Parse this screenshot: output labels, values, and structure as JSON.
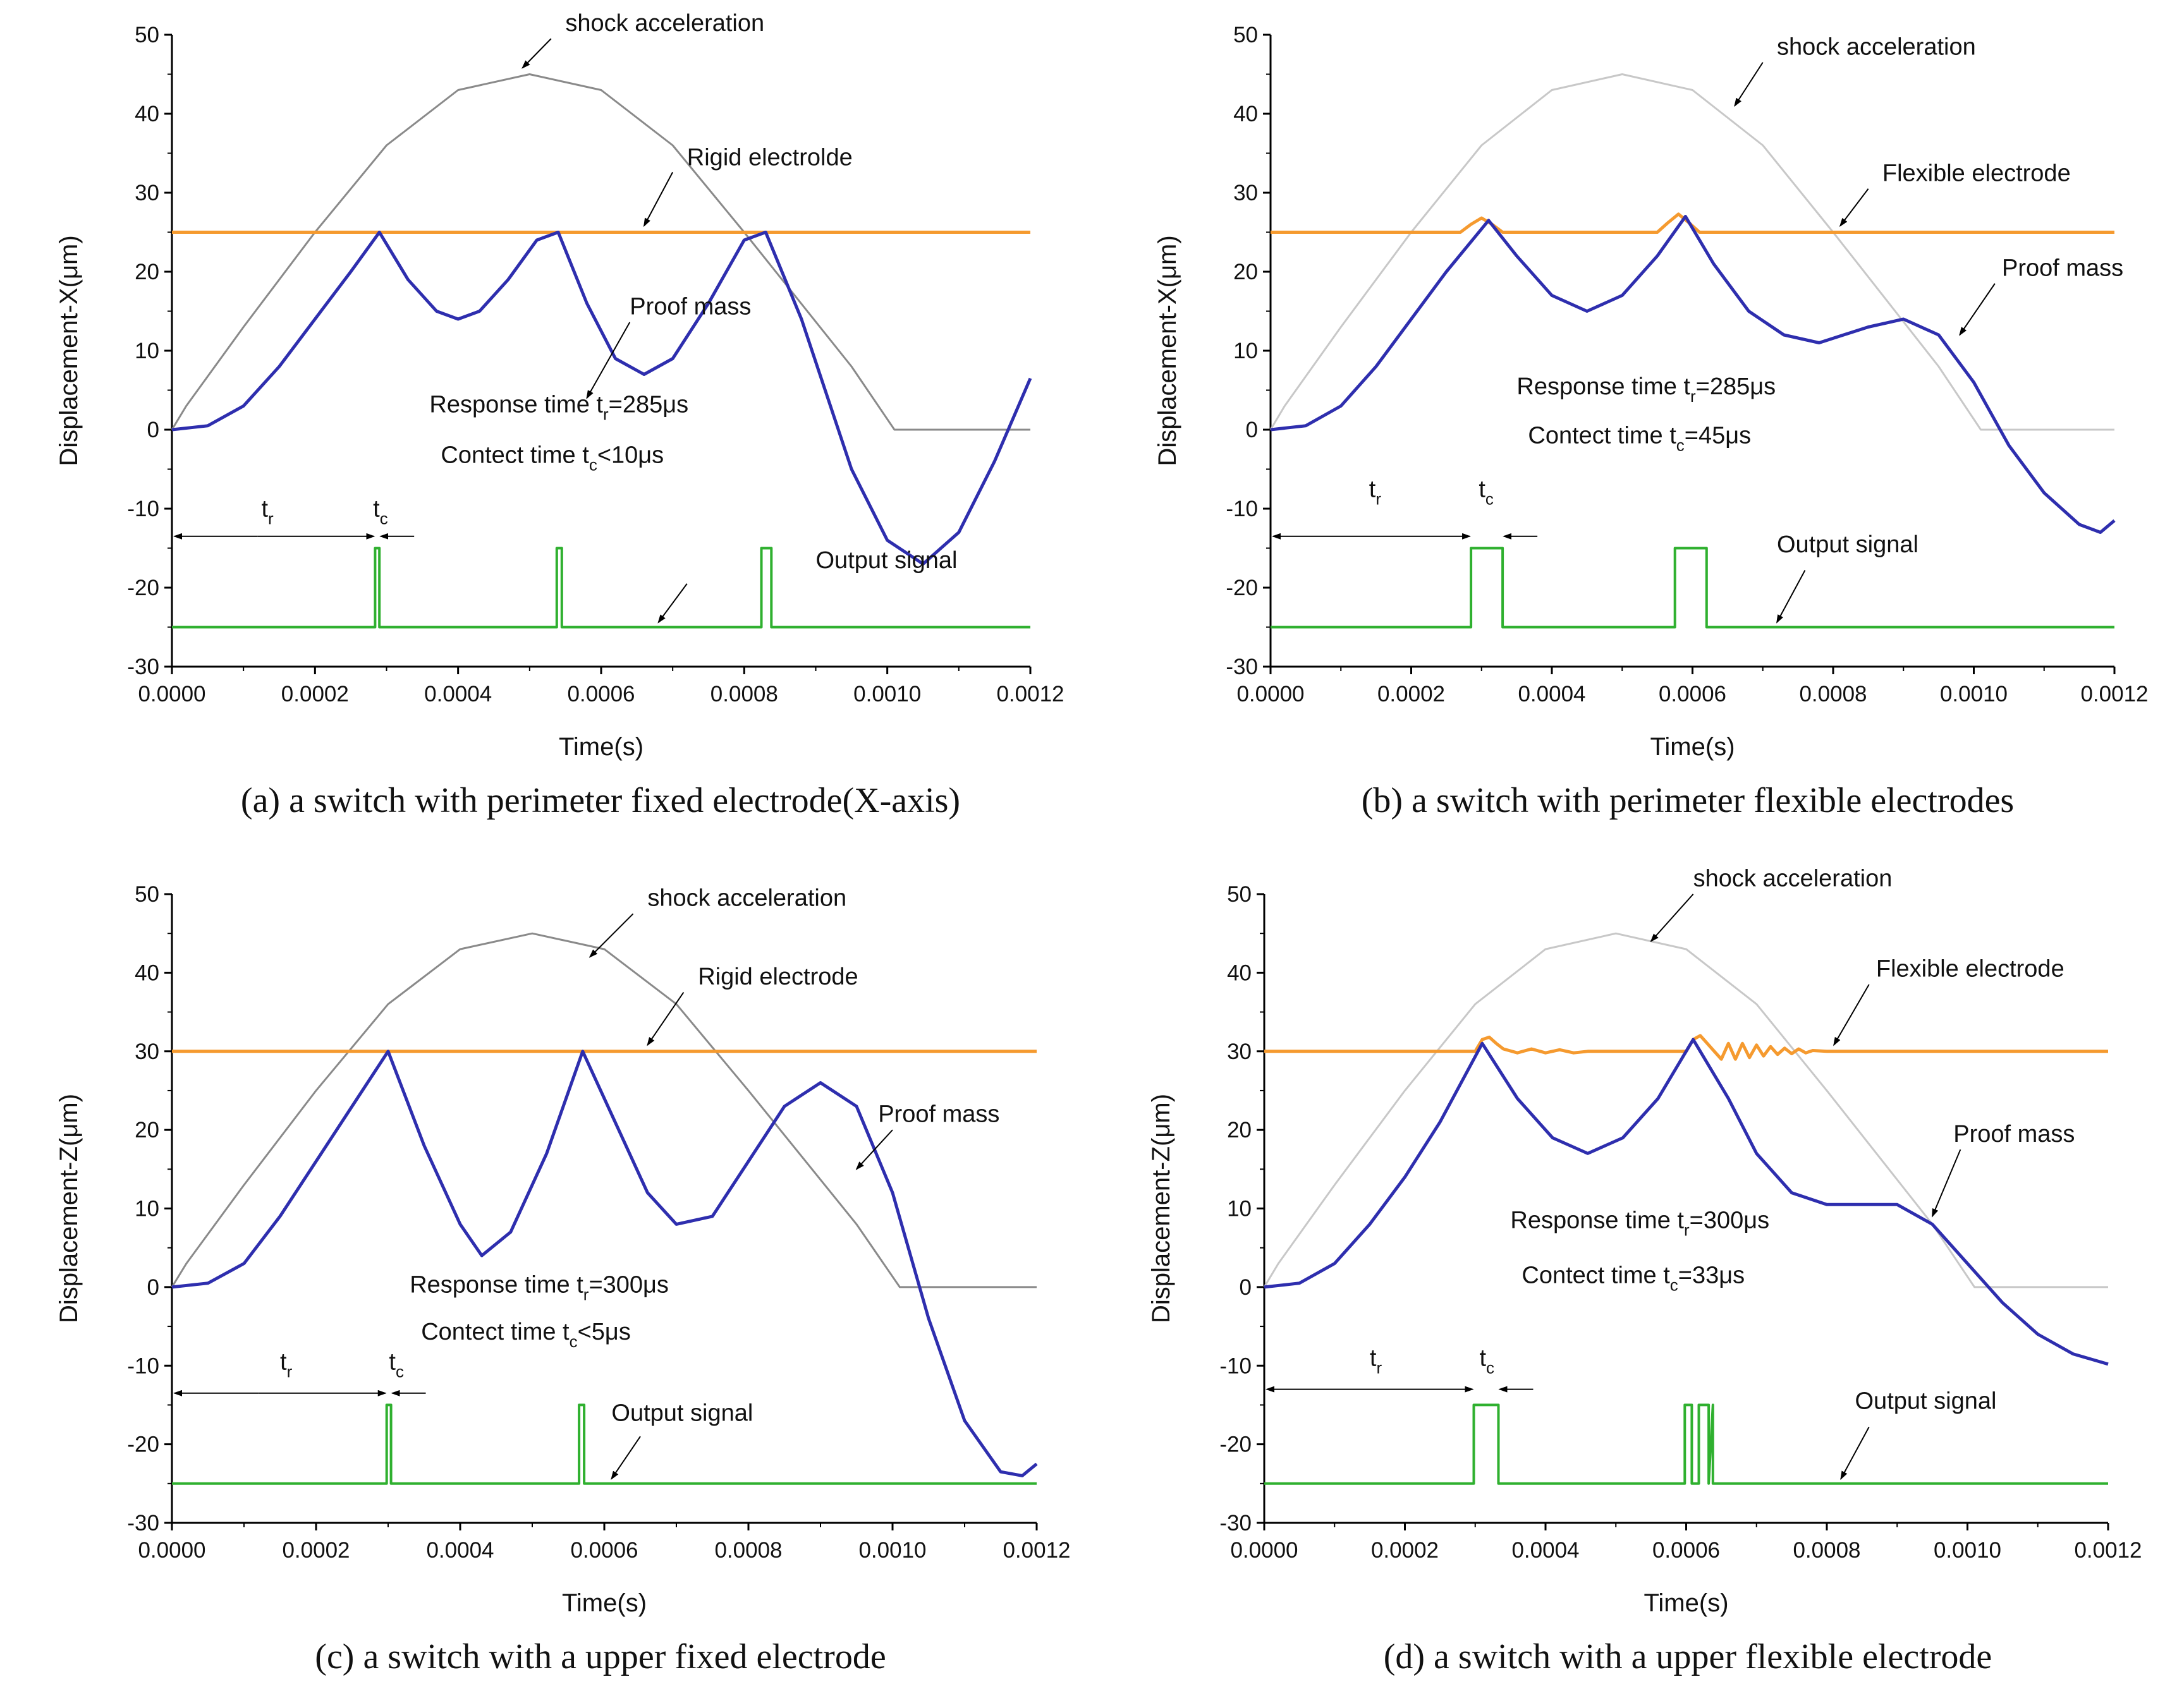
{
  "colors": {
    "proof_mass": "#2e2eae",
    "electrode": "#f59a2f",
    "output": "#2fb02f",
    "shock_dark": "#8a8a8a",
    "shock_light": "#c8c8c8",
    "axis": "#000000"
  },
  "chart_data": [
    {
      "type": "line",
      "panel": "a",
      "caption": "(a) a switch with perimeter fixed electrode(X-axis)",
      "xlabel": "Time(s)",
      "ylabel": "Displacement-X(μm)",
      "xlim": [
        0,
        0.0012
      ],
      "ylim": [
        -30,
        50
      ],
      "x_ticks": [
        "0.0000",
        "0.0002",
        "0.0004",
        "0.0006",
        "0.0008",
        "0.0010",
        "0.0012"
      ],
      "y_ticks": [
        "-30",
        "-20",
        "-10",
        "0",
        "10",
        "20",
        "30",
        "40",
        "50"
      ],
      "shock_style": "dark",
      "series": [
        {
          "name": "shock acceleration",
          "role": "shock",
          "x": [
            0,
            2e-05,
            0.0001,
            0.0002,
            0.0003,
            0.0004,
            0.0005,
            0.0006,
            0.0007,
            0.0008,
            0.00095,
            0.00101,
            0.0012
          ],
          "y": [
            0,
            3,
            13,
            25,
            36,
            43,
            45,
            43,
            36,
            25,
            8,
            0,
            0
          ]
        },
        {
          "name": "Rigid electrolde",
          "role": "electrode",
          "x": [
            0,
            0.0012
          ],
          "y": [
            25,
            25
          ]
        },
        {
          "name": "Proof mass",
          "role": "mass",
          "x": [
            0,
            5e-05,
            0.0001,
            0.00015,
            0.0002,
            0.00025,
            0.00029,
            0.00033,
            0.00037,
            0.0004,
            0.00043,
            0.00047,
            0.00051,
            0.00054,
            0.00058,
            0.00062,
            0.00066,
            0.0007,
            0.00075,
            0.0008,
            0.00083,
            0.00088,
            0.00095,
            0.001,
            0.00105,
            0.0011,
            0.00115,
            0.0012
          ],
          "y": [
            0,
            0.5,
            3,
            8,
            14,
            20,
            25,
            19,
            15,
            14,
            15,
            19,
            24,
            25,
            16,
            9,
            7,
            9,
            16,
            24,
            25,
            14,
            -5,
            -14,
            -17,
            -13,
            -4,
            6.5
          ]
        },
        {
          "name": "Output signal",
          "role": "output",
          "pulse_width_hint": 6e-06,
          "x": [
            0,
            0.000284,
            0.000284,
            0.00029,
            0.00029,
            0.000538,
            0.000538,
            0.000545,
            0.000545,
            0.000824,
            0.000824,
            0.000838,
            0.000838,
            0.0012
          ],
          "y": [
            -25,
            -25,
            -15,
            -15,
            -25,
            -25,
            -15,
            -15,
            -25,
            -25,
            -15,
            -15,
            -25,
            -25
          ]
        }
      ],
      "labels": {
        "shock": "shock acceleration",
        "electrode": "Rigid electrolde",
        "mass": "Proof mass",
        "output": "Output signal"
      },
      "response_prefix": "Response time t",
      "response_sub": "r",
      "response_value": "=285μs",
      "contact_prefix": "Contect time t",
      "contact_sub": "c",
      "contact_value": "<10μs",
      "tr_label": "t",
      "tr_sub": "r",
      "tc_label": "t",
      "tc_sub": "c",
      "tr_arrow_y": -13.5,
      "tr_end": 0.000284,
      "tc_end": 0.00029
    },
    {
      "type": "line",
      "panel": "b",
      "caption": "(b) a switch with perimeter flexible electrodes",
      "xlabel": "Time(s)",
      "ylabel": "Displacement-X(μm)",
      "xlim": [
        0,
        0.0012
      ],
      "ylim": [
        -30,
        50
      ],
      "x_ticks": [
        "0.0000",
        "0.0002",
        "0.0004",
        "0.0006",
        "0.0008",
        "0.0010",
        "0.0012"
      ],
      "y_ticks": [
        "-30",
        "-20",
        "-10",
        "0",
        "10",
        "20",
        "30",
        "40",
        "50"
      ],
      "shock_style": "light",
      "series": [
        {
          "name": "shock acceleration",
          "role": "shock",
          "x": [
            0,
            2e-05,
            0.0001,
            0.0002,
            0.0003,
            0.0004,
            0.0005,
            0.0006,
            0.0007,
            0.0008,
            0.00095,
            0.00101,
            0.0012
          ],
          "y": [
            0,
            3,
            13,
            25,
            36,
            43,
            45,
            43,
            36,
            25,
            8,
            0,
            0
          ]
        },
        {
          "name": "Flexible electrode",
          "role": "electrode",
          "x": [
            0,
            0.00027,
            0.000285,
            0.0003,
            0.000315,
            0.00033,
            0.00055,
            0.000565,
            0.00058,
            0.000595,
            0.00061,
            0.0012
          ],
          "y": [
            25,
            25,
            26,
            26.8,
            26,
            25,
            25,
            26.2,
            27.3,
            26.2,
            25,
            25
          ]
        },
        {
          "name": "Proof mass",
          "role": "mass",
          "x": [
            0,
            5e-05,
            0.0001,
            0.00015,
            0.0002,
            0.00025,
            0.00031,
            0.00035,
            0.0004,
            0.00045,
            0.0005,
            0.00055,
            0.00059,
            0.00063,
            0.00068,
            0.00073,
            0.00078,
            0.00085,
            0.0009,
            0.00095,
            0.001,
            0.00105,
            0.0011,
            0.00115,
            0.00118,
            0.0012
          ],
          "y": [
            0,
            0.5,
            3,
            8,
            14,
            20,
            26.5,
            22,
            17,
            15,
            17,
            22,
            27,
            21,
            15,
            12,
            11,
            13,
            14,
            12,
            6,
            -2,
            -8,
            -12,
            -13,
            -11.5
          ]
        },
        {
          "name": "Output signal",
          "role": "output",
          "pulse_width_hint": 6e-06,
          "x": [
            0,
            0.000285,
            0.000285,
            0.00033,
            0.00033,
            0.000575,
            0.000575,
            0.00062,
            0.00062,
            0.0012
          ],
          "y": [
            -25,
            -25,
            -15,
            -15,
            -25,
            -25,
            -15,
            -15,
            -25,
            -25
          ]
        }
      ],
      "labels": {
        "shock": "shock acceleration",
        "electrode": "Flexible electrode",
        "mass": "Proof mass",
        "output": "Output signal"
      },
      "response_prefix": "Response time t",
      "response_sub": "r",
      "response_value": "=285μs",
      "contact_prefix": "Contect time t",
      "contact_sub": "c",
      "contact_value": "=45μs",
      "tr_label": "t",
      "tr_sub": "r",
      "tc_label": "t",
      "tc_sub": "c",
      "tr_arrow_y": -13.5,
      "tr_end": 0.000285,
      "tc_end": 0.00033
    },
    {
      "type": "line",
      "panel": "c",
      "caption": "(c) a switch with a upper fixed electrode",
      "xlabel": "Time(s)",
      "ylabel": "Displacement-Z(μm)",
      "xlim": [
        0,
        0.0012
      ],
      "ylim": [
        -30,
        50
      ],
      "x_ticks": [
        "0.0000",
        "0.0002",
        "0.0004",
        "0.0006",
        "0.0008",
        "0.0010",
        "0.0012"
      ],
      "y_ticks": [
        "-30",
        "-20",
        "-10",
        "0",
        "10",
        "20",
        "30",
        "40",
        "50"
      ],
      "shock_style": "dark",
      "series": [
        {
          "name": "shock acceleration",
          "role": "shock",
          "x": [
            0,
            2e-05,
            0.0001,
            0.0002,
            0.0003,
            0.0004,
            0.0005,
            0.0006,
            0.0007,
            0.0008,
            0.00095,
            0.00101,
            0.0012
          ],
          "y": [
            0,
            3,
            13,
            25,
            36,
            43,
            45,
            43,
            36,
            25,
            8,
            0,
            0
          ]
        },
        {
          "name": "Rigid electrode",
          "role": "electrode",
          "x": [
            0,
            0.0012
          ],
          "y": [
            30,
            30
          ]
        },
        {
          "name": "Proof mass",
          "role": "mass",
          "x": [
            0,
            5e-05,
            0.0001,
            0.00015,
            0.0002,
            0.00025,
            0.0003,
            0.00035,
            0.0004,
            0.00043,
            0.00047,
            0.00052,
            0.00057,
            0.00062,
            0.00066,
            0.0007,
            0.00075,
            0.0008,
            0.00085,
            0.0009,
            0.00095,
            0.001,
            0.00105,
            0.0011,
            0.00115,
            0.00118,
            0.0012
          ],
          "y": [
            0,
            0.5,
            3,
            9,
            16,
            23,
            30,
            18,
            8,
            4,
            7,
            17,
            30,
            20,
            12,
            8,
            9,
            16,
            23,
            26,
            23,
            12,
            -4,
            -17,
            -23.5,
            -24,
            -22.5
          ]
        },
        {
          "name": "Output signal",
          "role": "output",
          "pulse_width_hint": 6e-06,
          "x": [
            0,
            0.000298,
            0.000298,
            0.000304,
            0.000304,
            0.000565,
            0.000565,
            0.000572,
            0.000572,
            0.0012
          ],
          "y": [
            -25,
            -25,
            -15,
            -15,
            -25,
            -25,
            -15,
            -15,
            -25,
            -25
          ]
        }
      ],
      "labels": {
        "shock": "shock acceleration",
        "electrode": "Rigid electrode",
        "mass": "Proof mass",
        "output": "Output signal"
      },
      "response_prefix": "Response time t",
      "response_sub": "r",
      "response_value": "=300μs",
      "contact_prefix": "Contect time t",
      "contact_sub": "c",
      "contact_value": "<5μs",
      "tr_label": "t",
      "tr_sub": "r",
      "tc_label": "t",
      "tc_sub": "c",
      "tr_arrow_y": -13.5,
      "tr_end": 0.000298,
      "tc_end": 0.000304
    },
    {
      "type": "line",
      "panel": "d",
      "caption": "(d) a switch with a upper flexible electrode",
      "xlabel": "Time(s)",
      "ylabel": "Displacement-Z(μm)",
      "xlim": [
        0,
        0.0012
      ],
      "ylim": [
        -30,
        50
      ],
      "x_ticks": [
        "0.0000",
        "0.0002",
        "0.0004",
        "0.0006",
        "0.0008",
        "0.0010",
        "0.0012"
      ],
      "y_ticks": [
        "-30",
        "-20",
        "-10",
        "0",
        "10",
        "20",
        "30",
        "40",
        "50"
      ],
      "shock_style": "light",
      "series": [
        {
          "name": "shock acceleration",
          "role": "shock",
          "x": [
            0,
            2e-05,
            0.0001,
            0.0002,
            0.0003,
            0.0004,
            0.0005,
            0.0006,
            0.0007,
            0.0008,
            0.00095,
            0.00101,
            0.0012
          ],
          "y": [
            0,
            3,
            13,
            25,
            36,
            43,
            45,
            43,
            36,
            25,
            8,
            0,
            0
          ]
        },
        {
          "name": "Flexible electrode",
          "role": "electrode",
          "x": [
            0,
            0.0003,
            0.00031,
            0.00032,
            0.00033,
            0.00034,
            0.00036,
            0.00038,
            0.0004,
            0.00042,
            0.00044,
            0.00046,
            0.0006,
            0.00061,
            0.00062,
            0.00063,
            0.00064,
            0.00065,
            0.00066,
            0.00067,
            0.00068,
            0.00069,
            0.0007,
            0.00071,
            0.00072,
            0.00073,
            0.00074,
            0.00075,
            0.00076,
            0.00077,
            0.00078,
            0.0008,
            0.0012
          ],
          "y": [
            30,
            30,
            31.5,
            31.8,
            31,
            30.3,
            29.8,
            30.3,
            29.8,
            30.2,
            29.8,
            30,
            30,
            31.5,
            32,
            31,
            30,
            29,
            31,
            29,
            31,
            29.2,
            30.8,
            29.4,
            30.6,
            29.6,
            30.4,
            29.7,
            30.3,
            29.8,
            30.1,
            30,
            30
          ]
        },
        {
          "name": "Proof mass",
          "role": "mass",
          "x": [
            0,
            5e-05,
            0.0001,
            0.00015,
            0.0002,
            0.00025,
            0.00031,
            0.00036,
            0.00041,
            0.00046,
            0.00051,
            0.00056,
            0.00061,
            0.00066,
            0.0007,
            0.00075,
            0.0008,
            0.00085,
            0.0009,
            0.00095,
            0.001,
            0.00105,
            0.0011,
            0.00115,
            0.0012
          ],
          "y": [
            0,
            0.5,
            3,
            8,
            14,
            21,
            31,
            24,
            19,
            17,
            19,
            24,
            31.5,
            24,
            17,
            12,
            10.5,
            10.5,
            10.5,
            8,
            3,
            -2,
            -6,
            -8.5,
            -9.8
          ]
        },
        {
          "name": "Output signal",
          "role": "output",
          "pulse_width_hint": 6e-06,
          "x": [
            0,
            0.000298,
            0.000298,
            0.000333,
            0.000333,
            0.000598,
            0.000598,
            0.000608,
            0.000608,
            0.000618,
            0.000618,
            0.000632,
            0.000632,
            0.000638,
            0.000638,
            0.0012
          ],
          "y": [
            -25,
            -25,
            -15,
            -15,
            -25,
            -25,
            -15,
            -15,
            -25,
            -25,
            -15,
            -15,
            -25,
            -15,
            -25,
            -25
          ]
        }
      ],
      "labels": {
        "shock": "shock acceleration",
        "electrode": "Flexible electrode",
        "mass": "Proof mass",
        "output": "Output signal"
      },
      "response_prefix": "Response time t",
      "response_sub": "r",
      "response_value": "=300μs",
      "contact_prefix": "Contect time t",
      "contact_sub": "c",
      "contact_value": "=33μs",
      "tr_label": "t",
      "tr_sub": "r",
      "tc_label": "t",
      "tc_sub": "c",
      "tr_arrow_y": -13,
      "tr_end": 0.000298,
      "tc_end": 0.000333
    }
  ]
}
